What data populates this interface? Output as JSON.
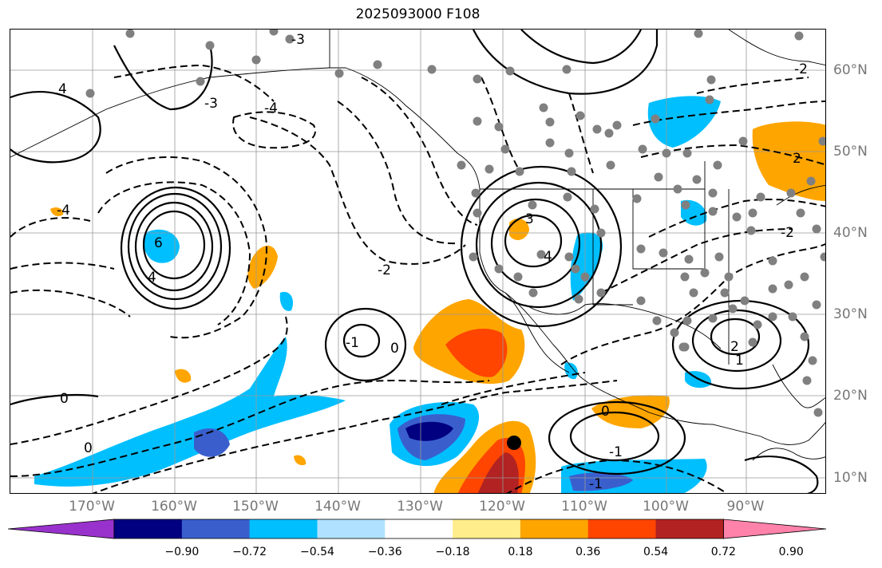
{
  "title": "2025093000 F108",
  "lon_labels": [
    "170°W",
    "160°W",
    "150°W",
    "140°W",
    "130°W",
    "120°W",
    "110°W",
    "100°W",
    "90°W"
  ],
  "lat_labels": [
    "60°N",
    "50°N",
    "40°N",
    "30°N",
    "20°N",
    "10°N"
  ],
  "colorbar": {
    "ticks": [
      "−0.90",
      "−0.72",
      "−0.54",
      "−0.36",
      "−0.18",
      "0.18",
      "0.36",
      "0.54",
      "0.72",
      "0.90"
    ],
    "colors": [
      "#9932cc",
      "#000080",
      "#3a5fcd",
      "#00bfff",
      "#b0e2ff",
      "#ffffff",
      "#ffec8b",
      "#ffa500",
      "#ff4500",
      "#b22222",
      "#ff82ab"
    ]
  },
  "fill_colors": {
    "deep_navy": "#000080",
    "mid_blue": "#3a5fcd",
    "sky_blue": "#00bfff",
    "orange": "#ffa500",
    "red_orange": "#ff4500",
    "dark_red": "#b22222"
  },
  "contour_labels": {
    "lows": [
      "4",
      "6",
      "4",
      "3",
      "4",
      "2",
      "1",
      "0",
      "-1",
      "0",
      "2",
      "-1"
    ],
    "neg": [
      "-4",
      "-3",
      "-3",
      "-4",
      "-2",
      "-1",
      "-2",
      "-2",
      "0",
      "0"
    ]
  },
  "marker": "black-dot"
}
